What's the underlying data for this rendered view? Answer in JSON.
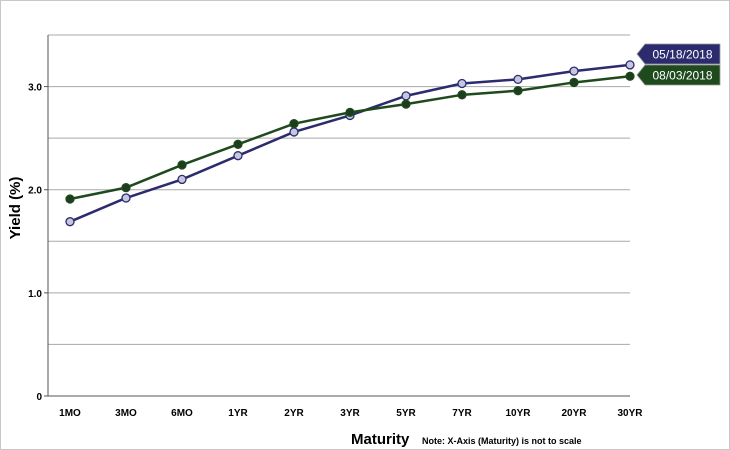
{
  "chart_data": {
    "type": "line",
    "categories": [
      "1MO",
      "3MO",
      "6MO",
      "1YR",
      "2YR",
      "3YR",
      "5YR",
      "7YR",
      "10YR",
      "20YR",
      "30YR"
    ],
    "series": [
      {
        "name": "05/18/2018",
        "color": "#2b2b6e",
        "marker_fill": "#c5c7df",
        "values": [
          1.69,
          1.92,
          2.1,
          2.33,
          2.56,
          2.72,
          2.91,
          3.03,
          3.07,
          3.15,
          3.21
        ]
      },
      {
        "name": "08/03/2018",
        "color": "#1e4a1e",
        "marker_fill": "#1e3d1e",
        "values": [
          1.91,
          2.02,
          2.24,
          2.44,
          2.64,
          2.75,
          2.83,
          2.92,
          2.96,
          3.04,
          3.1
        ]
      }
    ],
    "ylabel": "Yield (%)",
    "xlabel": "Maturity",
    "note": "Note: X-Axis (Maturity) is not to scale",
    "ylim": [
      0,
      3.5
    ],
    "y_ticks": [
      {
        "value": 0,
        "label": "0"
      },
      {
        "value": 1.0,
        "label": "1.0"
      },
      {
        "value": 2.0,
        "label": "2.0"
      },
      {
        "value": 3.0,
        "label": "3.0"
      }
    ],
    "y_grid": [
      0.5,
      1.0,
      1.5,
      2.0,
      2.5,
      3.0,
      3.5
    ],
    "grid": true,
    "legend": "end-of-line labels, right"
  }
}
